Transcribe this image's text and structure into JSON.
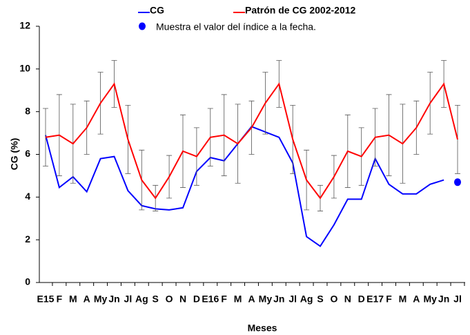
{
  "chart_data": {
    "type": "line",
    "x_label": "Meses",
    "y_label": "CG (%)",
    "categories": [
      "E15",
      "F",
      "M",
      "A",
      "My",
      "Jn",
      "Jl",
      "Ag",
      "S",
      "O",
      "N",
      "D",
      "E16",
      "F",
      "M",
      "A",
      "My",
      "Jn",
      "Jl",
      "Ag",
      "S",
      "O",
      "N",
      "D",
      "E17",
      "F",
      "M",
      "A",
      "My",
      "Jn",
      "Jl"
    ],
    "ylim": [
      0,
      12
    ],
    "yticks": [
      0,
      2,
      4,
      6,
      8,
      10,
      12
    ],
    "series": [
      {
        "name": "CG",
        "color": "#0000ff",
        "mode": "line",
        "values": [
          6.9,
          4.45,
          4.95,
          4.25,
          5.8,
          5.9,
          4.3,
          3.6,
          3.45,
          3.4,
          3.5,
          5.2,
          5.85,
          5.7,
          6.5,
          7.3,
          7.05,
          6.8,
          5.6,
          2.15,
          1.7,
          2.7,
          3.9,
          3.9,
          5.8,
          4.6,
          4.15,
          4.15,
          4.6,
          4.8,
          null
        ]
      },
      {
        "name": "Patrón de CG 2002-2012",
        "color": "#ff0000",
        "mode": "line",
        "values": [
          6.8,
          6.9,
          6.5,
          7.25,
          8.4,
          9.3,
          6.7,
          4.8,
          3.95,
          4.95,
          6.15,
          5.9,
          6.8,
          6.9,
          6.5,
          7.25,
          8.4,
          9.3,
          6.7,
          4.8,
          3.95,
          4.95,
          6.15,
          5.9,
          6.8,
          6.9,
          6.5,
          7.25,
          8.4,
          9.3,
          6.7
        ],
        "errors": [
          1.35,
          1.9,
          1.85,
          1.25,
          1.45,
          1.1,
          1.6,
          1.4,
          0.6,
          1.0,
          1.7,
          1.35,
          1.35,
          1.9,
          1.85,
          1.25,
          1.45,
          1.1,
          1.6,
          1.4,
          0.6,
          1.0,
          1.7,
          1.35,
          1.35,
          1.9,
          1.85,
          1.25,
          1.45,
          1.1,
          1.6
        ]
      },
      {
        "name": "Muestra el valor del índice a la fecha.",
        "color": "#0000ff",
        "mode": "marker",
        "values": [
          null,
          null,
          null,
          null,
          null,
          null,
          null,
          null,
          null,
          null,
          null,
          null,
          null,
          null,
          null,
          null,
          null,
          null,
          null,
          null,
          null,
          null,
          null,
          null,
          null,
          null,
          null,
          null,
          null,
          null,
          4.7
        ]
      }
    ]
  }
}
